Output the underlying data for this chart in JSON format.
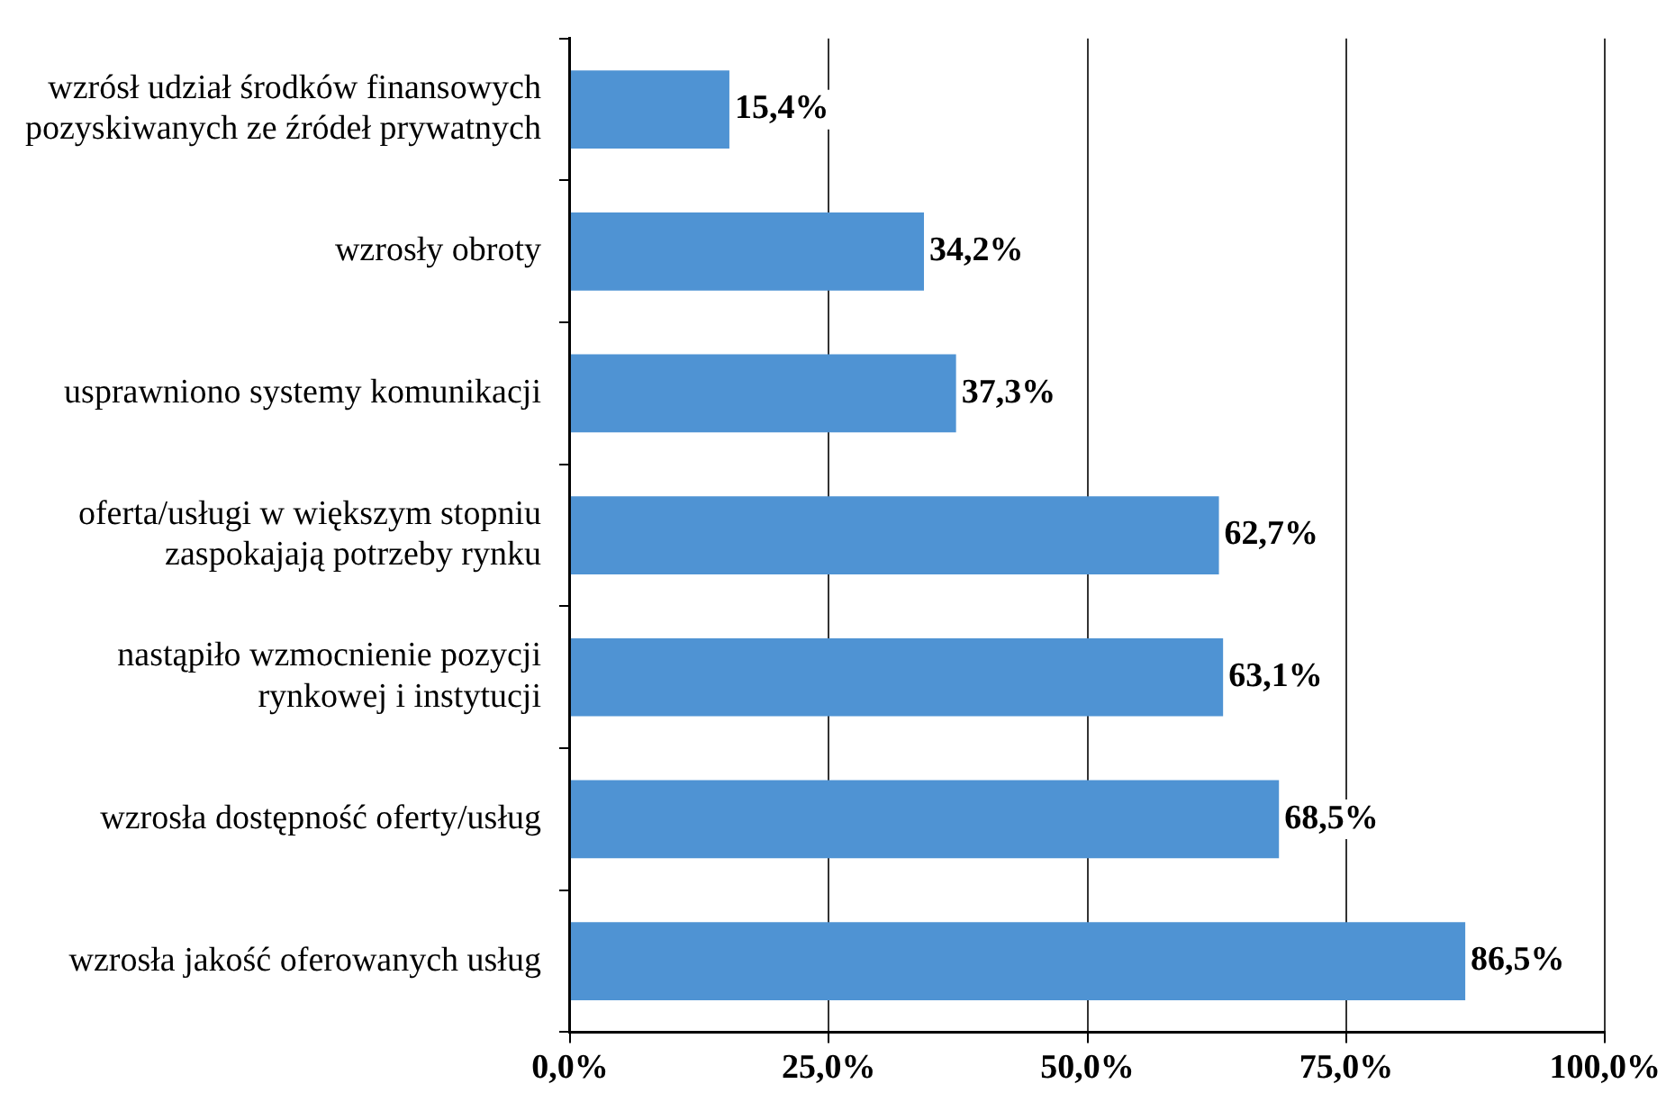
{
  "chart_data": {
    "type": "bar",
    "orientation": "horizontal",
    "categories": [
      "wzrósł udział środków finansowych pozyskiwanych ze źródeł prywatnych",
      "wzrosły obroty",
      "usprawniono systemy komunikacji",
      "oferta/usługi w większym stopniu zaspokajają potrzeby rynku",
      "nastąpiło wzmocnienie pozycji rynkowej i instytucji",
      "wzrosła dostępność oferty/usług",
      "wzrosła jakość oferowanych usług"
    ],
    "values": [
      15.4,
      34.2,
      37.3,
      62.7,
      63.1,
      68.5,
      86.5
    ],
    "value_labels": [
      "15,4%",
      "34,2%",
      "37,3%",
      "62,7%",
      "63,1%",
      "68,5%",
      "86,5%"
    ],
    "color": "#4f93d3",
    "xlim": [
      0,
      100
    ],
    "xticks": [
      {
        "value": 0,
        "label": "0,0%"
      },
      {
        "value": 25,
        "label": "25,0%"
      },
      {
        "value": 50,
        "label": "50,0%"
      },
      {
        "value": 75,
        "label": "75,0%"
      },
      {
        "value": 100,
        "label": "100,0%"
      }
    ],
    "grid": "x",
    "legend": false
  }
}
